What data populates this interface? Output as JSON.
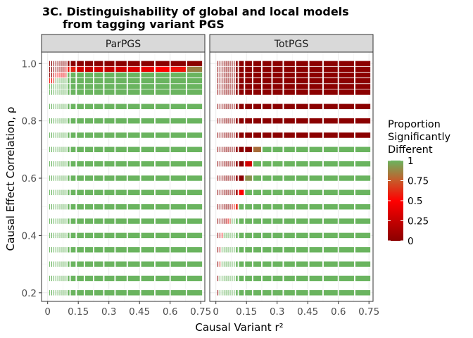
{
  "chart_data": {
    "type": "heatmap",
    "title_line1": "3C. Distinguishability of global and local models",
    "title_line2": "from tagging variant PGS",
    "xlabel": "Causal Variant r²",
    "ylabel": "Causal Effect Correlation, ρ",
    "xlim": [
      -0.03,
      0.77
    ],
    "ylim": [
      0.17,
      1.04
    ],
    "x_ticks": [
      0,
      0.15,
      0.3,
      0.45,
      0.6,
      0.75
    ],
    "x_tick_labels": [
      "0",
      "0.15",
      "0.3",
      "0.45",
      "0.6",
      "0.75"
    ],
    "y_ticks": [
      0.2,
      0.4,
      0.6,
      0.8,
      1.0
    ],
    "y_tick_labels": [
      "0.2",
      "0.4",
      "0.6",
      "0.8",
      "1.0"
    ],
    "legend": {
      "title_lines": [
        "Proportion",
        "Significantly",
        "Different"
      ],
      "tick_values": [
        0,
        0.25,
        0.5,
        0.75,
        1
      ],
      "tick_labels": [
        "0",
        "0.25",
        "0.5",
        "0.75",
        "1"
      ],
      "colors": [
        "#8b0000",
        "#ff0000",
        "#6ab45f"
      ]
    },
    "x_values": [
      0.01,
      0.02,
      0.03,
      0.04,
      0.05,
      0.06,
      0.07,
      0.08,
      0.09,
      0.1,
      0.12,
      0.16,
      0.2,
      0.25,
      0.3,
      0.36,
      0.42,
      0.49,
      0.56,
      0.64,
      0.72
    ],
    "y_values": [
      0.2,
      0.25,
      0.3,
      0.35,
      0.4,
      0.45,
      0.5,
      0.55,
      0.6,
      0.65,
      0.7,
      0.75,
      0.8,
      0.85,
      0.9,
      0.92,
      0.94,
      0.96,
      0.98,
      1.0
    ],
    "panels": [
      {
        "name": "ParPGS",
        "uniform_value": 1,
        "rows": [
          {
            "y": 0.94,
            "values": [
              0.55,
              0.45,
              0.6,
              0.95,
              1,
              1,
              1,
              1,
              1,
              1,
              1,
              1,
              1,
              1,
              1,
              1,
              1,
              1,
              1,
              1,
              1
            ]
          },
          {
            "y": 0.96,
            "values": [
              0,
              0.1,
              0.25,
              0.4,
              0.5,
              0.45,
              0.4,
              0.45,
              0.6,
              1,
              1,
              1,
              1,
              1,
              1,
              1,
              1,
              1,
              1,
              1,
              1
            ]
          },
          {
            "y": 0.98,
            "values": [
              0,
              0,
              0,
              0,
              0,
              0.05,
              0.1,
              0.2,
              0.35,
              0.55,
              0.6,
              0.3,
              0.25,
              0.3,
              0.25,
              0.3,
              0.35,
              0.4,
              0.5,
              0.55,
              0.85
            ]
          },
          {
            "y": 1.0,
            "values": [
              0,
              0,
              0,
              0,
              0,
              0,
              0,
              0,
              0,
              0,
              0,
              0,
              0,
              0,
              0,
              0,
              0,
              0,
              0,
              0,
              0
            ]
          }
        ]
      },
      {
        "name": "TotPGS",
        "uniform_value": 0,
        "rows": [
          {
            "y": 0.2,
            "values": [
              0,
              1,
              1,
              1,
              1,
              1,
              1,
              1,
              1,
              1,
              1,
              1,
              1,
              1,
              1,
              1,
              1,
              1,
              1,
              1,
              1
            ]
          },
          {
            "y": 0.25,
            "values": [
              0,
              1,
              1,
              1,
              1,
              1,
              1,
              1,
              1,
              1,
              1,
              1,
              1,
              1,
              1,
              1,
              1,
              1,
              1,
              1,
              1
            ]
          },
          {
            "y": 0.3,
            "values": [
              0,
              0.6,
              1,
              1,
              1,
              1,
              1,
              1,
              1,
              1,
              1,
              1,
              1,
              1,
              1,
              1,
              1,
              1,
              1,
              1,
              1
            ]
          },
          {
            "y": 0.35,
            "values": [
              0,
              0.2,
              1,
              1,
              1,
              1,
              1,
              1,
              1,
              1,
              1,
              1,
              1,
              1,
              1,
              1,
              1,
              1,
              1,
              1,
              1
            ]
          },
          {
            "y": 0.4,
            "values": [
              0,
              0.1,
              0.45,
              1,
              1,
              1,
              1,
              1,
              1,
              1,
              1,
              1,
              1,
              1,
              1,
              1,
              1,
              1,
              1,
              1,
              1
            ]
          },
          {
            "y": 0.45,
            "values": [
              0,
              0,
              0,
              0,
              0.1,
              0.4,
              0.7,
              1,
              1,
              1,
              1,
              1,
              1,
              1,
              1,
              1,
              1,
              1,
              1,
              1,
              1
            ]
          },
          {
            "y": 0.5,
            "values": [
              0,
              0,
              0,
              0,
              0,
              0,
              0,
              0.3,
              0.55,
              0.6,
              1,
              1,
              1,
              1,
              1,
              1,
              1,
              1,
              1,
              1,
              1
            ]
          },
          {
            "y": 0.55,
            "values": [
              0,
              0,
              0,
              0,
              0,
              0,
              0,
              0,
              0,
              0.1,
              0.5,
              1,
              1,
              1,
              1,
              1,
              1,
              1,
              1,
              1,
              1
            ]
          },
          {
            "y": 0.6,
            "values": [
              0,
              0,
              0,
              0,
              0,
              0,
              0,
              0,
              0,
              0,
              0,
              0.9,
              1,
              1,
              1,
              1,
              1,
              1,
              1,
              1,
              1
            ]
          },
          {
            "y": 0.65,
            "values": [
              0,
              0,
              0,
              0,
              0,
              0,
              0,
              0,
              0,
              0,
              0,
              0.3,
              1,
              1,
              1,
              1,
              1,
              1,
              1,
              1,
              1
            ]
          },
          {
            "y": 0.7,
            "values": [
              0,
              0,
              0,
              0,
              0,
              0,
              0,
              0,
              0,
              0,
              0,
              0,
              0.8,
              1,
              1,
              1,
              1,
              1,
              1,
              1,
              1
            ]
          }
        ]
      }
    ]
  }
}
